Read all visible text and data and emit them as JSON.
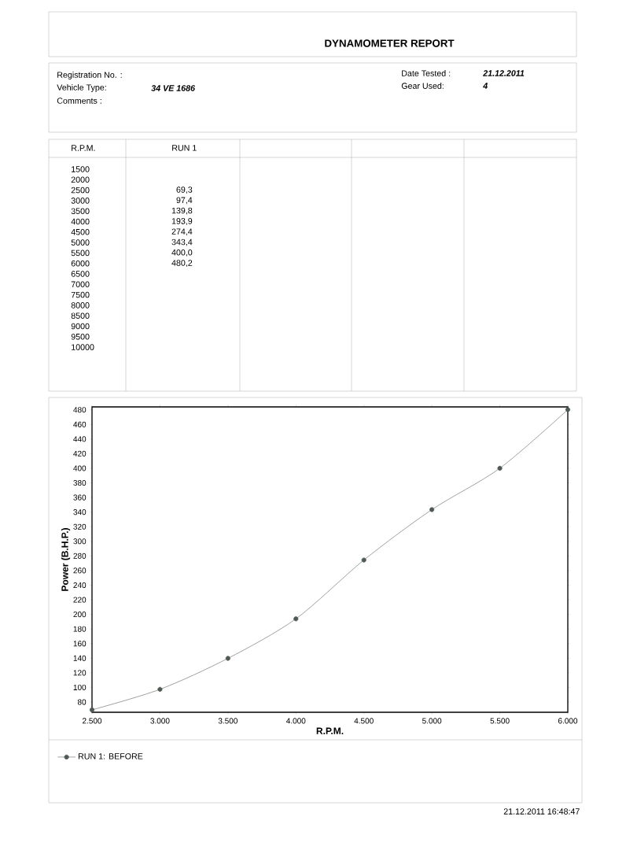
{
  "chart_data": {
    "type": "line",
    "title": "DYNAMOMETER REPORT",
    "xlabel": "R.P.M.",
    "ylabel": "Power (B.H.P.)",
    "x": [
      2500,
      3000,
      3500,
      4000,
      4500,
      5000,
      5500,
      6000
    ],
    "series": [
      {
        "name": "RUN 1: BEFORE",
        "color": "#4f5a53",
        "values": [
          69.3,
          97.4,
          139.8,
          193.9,
          274.4,
          343.4,
          400.0,
          480.2
        ]
      }
    ],
    "xlim": [
      2500,
      6000
    ],
    "xticks": [
      {
        "value": 2500,
        "label": "2.500"
      },
      {
        "value": 3000,
        "label": "3.000"
      },
      {
        "value": 3500,
        "label": "3.500"
      },
      {
        "value": 4000,
        "label": "4.000"
      },
      {
        "value": 4500,
        "label": "4.500"
      },
      {
        "value": 5000,
        "label": "5.000"
      },
      {
        "value": 5500,
        "label": "5.500"
      },
      {
        "value": 6000,
        "label": "6.000"
      }
    ],
    "ylim": [
      66,
      484
    ],
    "yticks": [
      80,
      100,
      120,
      140,
      160,
      180,
      200,
      220,
      240,
      260,
      280,
      300,
      320,
      340,
      360,
      380,
      400,
      420,
      440,
      460,
      480
    ],
    "grid": false,
    "legend": "bottom",
    "marker": "circle",
    "line_style": "solid",
    "annotations": [
      "Registration No. :",
      "Vehicle Type:",
      "34 VE 1686",
      "Comments :",
      "Date Tested :",
      "21.12.2011",
      "Gear Used:",
      "4",
      "R.P.M.",
      "RUN 1",
      "1500",
      "2000",
      "2500",
      "3000",
      "3500",
      "4000",
      "4500",
      "5000",
      "5500",
      "6000",
      "6500",
      "7000",
      "7500",
      "8000",
      "8500",
      "9000",
      "9500",
      "10000",
      "21.12.2011 16:48:47",
      "69,3",
      "97,4",
      "139,8",
      "193,9",
      "274,4",
      "343,4",
      "400,0",
      "480,2"
    ]
  }
}
